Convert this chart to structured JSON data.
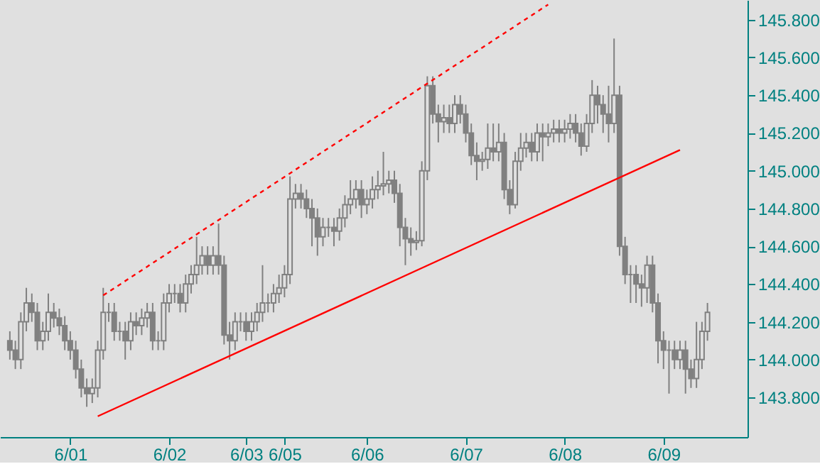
{
  "chart_data": {
    "type": "candlestick",
    "categories": [
      null,
      null,
      null,
      null,
      null,
      null,
      null,
      null,
      null,
      null,
      null,
      "6/01",
      null,
      null,
      null,
      null,
      null,
      null,
      null,
      null,
      null,
      null,
      null,
      null,
      null,
      null,
      null,
      null,
      null,
      "6/02",
      null,
      null,
      null,
      null,
      null,
      null,
      null,
      null,
      null,
      null,
      null,
      null,
      null,
      "6/03",
      null,
      null,
      null,
      null,
      null,
      null,
      "6/05",
      null,
      null,
      null,
      null,
      null,
      null,
      null,
      null,
      null,
      null,
      null,
      null,
      null,
      null,
      "6/06",
      null,
      null,
      null,
      null,
      null,
      null,
      null,
      null,
      null,
      null,
      null,
      null,
      null,
      null,
      null,
      null,
      null,
      "6/07",
      null,
      null,
      null,
      null,
      null,
      null,
      null,
      null,
      null,
      null,
      null,
      null,
      null,
      null,
      null,
      null,
      null,
      "6/08",
      null,
      null,
      null,
      null,
      null,
      null,
      null,
      null,
      null,
      null,
      null,
      null,
      null,
      null,
      null,
      null,
      null,
      "6/09",
      null,
      null,
      null,
      null,
      null,
      null,
      null,
      null
    ],
    "ohlc": [
      [
        144.1,
        144.15,
        144.0,
        144.05
      ],
      [
        144.05,
        144.1,
        143.95,
        144.0
      ],
      [
        144.0,
        144.25,
        143.95,
        144.2
      ],
      [
        144.2,
        144.38,
        144.15,
        144.3
      ],
      [
        144.3,
        144.35,
        144.2,
        144.25
      ],
      [
        144.25,
        144.3,
        144.05,
        144.1
      ],
      [
        144.1,
        144.2,
        144.05,
        144.15
      ],
      [
        144.15,
        144.35,
        144.1,
        144.25
      ],
      [
        144.25,
        144.3,
        144.17,
        144.22
      ],
      [
        144.22,
        144.27,
        144.13,
        144.18
      ],
      [
        144.18,
        144.23,
        144.05,
        144.1
      ],
      [
        144.1,
        144.15,
        144.0,
        144.05
      ],
      [
        144.05,
        144.1,
        143.9,
        143.95
      ],
      [
        143.95,
        144.0,
        143.8,
        143.85
      ],
      [
        143.85,
        143.9,
        143.75,
        143.82
      ],
      [
        143.82,
        143.9,
        143.77,
        143.85
      ],
      [
        143.85,
        144.1,
        143.8,
        144.05
      ],
      [
        144.05,
        144.38,
        144.0,
        144.25
      ],
      [
        144.25,
        144.3,
        144.2,
        144.25
      ],
      [
        144.25,
        144.3,
        144.1,
        144.15
      ],
      [
        144.15,
        144.2,
        144.1,
        144.15
      ],
      [
        144.15,
        144.2,
        144.0,
        144.1
      ],
      [
        144.1,
        144.25,
        144.05,
        144.2
      ],
      [
        144.2,
        144.25,
        144.13,
        144.18
      ],
      [
        144.18,
        144.27,
        144.13,
        144.22
      ],
      [
        144.22,
        144.3,
        144.17,
        144.25
      ],
      [
        144.25,
        144.3,
        144.05,
        144.1
      ],
      [
        144.1,
        144.15,
        144.05,
        144.1
      ],
      [
        144.1,
        144.35,
        144.05,
        144.3
      ],
      [
        144.3,
        144.4,
        144.25,
        144.35
      ],
      [
        144.35,
        144.4,
        144.3,
        144.35
      ],
      [
        144.35,
        144.4,
        144.25,
        144.3
      ],
      [
        144.3,
        144.45,
        144.25,
        144.4
      ],
      [
        144.4,
        144.5,
        144.35,
        144.45
      ],
      [
        144.45,
        144.65,
        144.4,
        144.5
      ],
      [
        144.5,
        144.6,
        144.45,
        144.55
      ],
      [
        144.55,
        144.6,
        144.45,
        144.5
      ],
      [
        144.5,
        144.6,
        144.45,
        144.55
      ],
      [
        144.55,
        144.72,
        144.45,
        144.5
      ],
      [
        144.5,
        144.55,
        144.08,
        144.13
      ],
      [
        144.13,
        144.2,
        144.0,
        144.1
      ],
      [
        144.1,
        144.25,
        144.05,
        144.2
      ],
      [
        144.2,
        144.25,
        144.15,
        144.2
      ],
      [
        144.2,
        144.25,
        144.1,
        144.15
      ],
      [
        144.15,
        144.25,
        144.1,
        144.2
      ],
      [
        144.2,
        144.3,
        144.15,
        144.25
      ],
      [
        144.25,
        144.5,
        144.2,
        144.3
      ],
      [
        144.3,
        144.35,
        144.25,
        144.3
      ],
      [
        144.3,
        144.4,
        144.25,
        144.35
      ],
      [
        144.35,
        144.45,
        144.3,
        144.38
      ],
      [
        144.38,
        144.5,
        144.33,
        144.45
      ],
      [
        144.45,
        144.97,
        144.4,
        144.85
      ],
      [
        144.85,
        144.93,
        144.8,
        144.88
      ],
      [
        144.88,
        144.93,
        144.8,
        144.85
      ],
      [
        144.85,
        144.9,
        144.75,
        144.8
      ],
      [
        144.8,
        144.85,
        144.6,
        144.75
      ],
      [
        144.75,
        144.8,
        144.55,
        144.65
      ],
      [
        144.65,
        144.75,
        144.6,
        144.7
      ],
      [
        144.7,
        144.75,
        144.65,
        144.7
      ],
      [
        144.7,
        144.75,
        144.6,
        144.68
      ],
      [
        144.68,
        144.8,
        144.63,
        144.75
      ],
      [
        144.75,
        144.87,
        144.7,
        144.82
      ],
      [
        144.82,
        144.95,
        144.77,
        144.85
      ],
      [
        144.85,
        144.95,
        144.8,
        144.9
      ],
      [
        144.9,
        144.95,
        144.75,
        144.82
      ],
      [
        144.82,
        144.9,
        144.77,
        144.85
      ],
      [
        144.85,
        144.97,
        144.8,
        144.9
      ],
      [
        144.9,
        145.0,
        144.85,
        144.92
      ],
      [
        144.92,
        145.1,
        144.87,
        144.93
      ],
      [
        144.93,
        145.0,
        144.88,
        144.95
      ],
      [
        144.95,
        145.0,
        144.83,
        144.88
      ],
      [
        144.88,
        144.93,
        144.6,
        144.7
      ],
      [
        144.7,
        144.75,
        144.5,
        144.64
      ],
      [
        144.64,
        144.7,
        144.55,
        144.62
      ],
      [
        144.62,
        144.68,
        144.58,
        144.63
      ],
      [
        144.63,
        145.05,
        144.6,
        145.0
      ],
      [
        145.0,
        145.5,
        144.95,
        145.45
      ],
      [
        145.45,
        145.5,
        145.25,
        145.3
      ],
      [
        145.3,
        145.35,
        145.15,
        145.26
      ],
      [
        145.26,
        145.35,
        145.2,
        145.28
      ],
      [
        145.28,
        145.35,
        145.2,
        145.25
      ],
      [
        145.25,
        145.4,
        145.2,
        145.35
      ],
      [
        145.35,
        145.4,
        145.25,
        145.3
      ],
      [
        145.3,
        145.35,
        145.15,
        145.2
      ],
      [
        145.2,
        145.25,
        145.03,
        145.08
      ],
      [
        145.08,
        145.15,
        144.95,
        145.05
      ],
      [
        145.05,
        145.1,
        145.0,
        145.06
      ],
      [
        145.06,
        145.25,
        145.01,
        145.12
      ],
      [
        145.12,
        145.25,
        145.05,
        145.1
      ],
      [
        145.1,
        145.25,
        145.05,
        145.15
      ],
      [
        145.15,
        145.2,
        144.85,
        144.9
      ],
      [
        144.9,
        144.95,
        144.77,
        144.82
      ],
      [
        144.82,
        145.1,
        144.8,
        145.05
      ],
      [
        145.05,
        145.2,
        145.0,
        145.12
      ],
      [
        145.12,
        145.2,
        145.07,
        145.15
      ],
      [
        145.15,
        145.2,
        145.05,
        145.1
      ],
      [
        145.1,
        145.25,
        145.05,
        145.2
      ],
      [
        145.2,
        145.25,
        145.05,
        145.18
      ],
      [
        145.18,
        145.25,
        145.13,
        145.2
      ],
      [
        145.2,
        145.27,
        145.15,
        145.22
      ],
      [
        145.22,
        145.27,
        145.15,
        145.2
      ],
      [
        145.2,
        145.27,
        145.15,
        145.22
      ],
      [
        145.22,
        145.3,
        145.17,
        145.25
      ],
      [
        145.25,
        145.3,
        145.15,
        145.2
      ],
      [
        145.2,
        145.25,
        145.08,
        145.13
      ],
      [
        145.13,
        145.3,
        145.1,
        145.25
      ],
      [
        145.25,
        145.48,
        145.2,
        145.4
      ],
      [
        145.4,
        145.45,
        145.25,
        145.35
      ],
      [
        145.35,
        145.4,
        145.2,
        145.3
      ],
      [
        145.3,
        145.45,
        145.15,
        145.25
      ],
      [
        145.25,
        145.7,
        145.2,
        145.4
      ],
      [
        145.4,
        145.45,
        144.55,
        144.6
      ],
      [
        144.6,
        144.65,
        144.4,
        144.45
      ],
      [
        144.45,
        144.5,
        144.3,
        144.45
      ],
      [
        144.45,
        144.5,
        144.3,
        144.4
      ],
      [
        144.4,
        144.45,
        144.28,
        144.38
      ],
      [
        144.38,
        144.55,
        144.3,
        144.5
      ],
      [
        144.5,
        144.55,
        144.25,
        144.3
      ],
      [
        144.3,
        144.35,
        143.98,
        144.1
      ],
      [
        144.1,
        144.15,
        143.95,
        144.05
      ],
      [
        144.05,
        144.1,
        143.82,
        144.05
      ],
      [
        144.05,
        144.1,
        143.95,
        144.0
      ],
      [
        144.0,
        144.1,
        143.95,
        144.05
      ],
      [
        144.05,
        144.1,
        143.82,
        143.95
      ],
      [
        143.95,
        144.0,
        143.85,
        143.9
      ],
      [
        143.9,
        144.2,
        143.85,
        144.0
      ],
      [
        144.0,
        144.2,
        143.95,
        144.15
      ],
      [
        144.15,
        144.3,
        144.1,
        144.25
      ]
    ],
    "color": "#808080",
    "series": [
      {
        "type": "line",
        "values": [
          null,
          null,
          null,
          null,
          null,
          null,
          null,
          null,
          null,
          null,
          null,
          null,
          null,
          null,
          null,
          null,
          143.7,
          null,
          null,
          null,
          null,
          null,
          null,
          null,
          null,
          null,
          null,
          null,
          null,
          null,
          null,
          null,
          null,
          null,
          null,
          null,
          null,
          null,
          null,
          null,
          null,
          null,
          null,
          null,
          null,
          null,
          null,
          null,
          null,
          null,
          null,
          null,
          null,
          null,
          null,
          null,
          null,
          null,
          null,
          null,
          null,
          null,
          null,
          null,
          null,
          null,
          null,
          null,
          null,
          null,
          null,
          null,
          null,
          null,
          null,
          null,
          null,
          null,
          null,
          null,
          null,
          null,
          null,
          null,
          null,
          null,
          null,
          null,
          null,
          null,
          null,
          null,
          null,
          null,
          null,
          null,
          null,
          null,
          null,
          null,
          null,
          null,
          null,
          null,
          null,
          null,
          null,
          null,
          null,
          null,
          null,
          null,
          null,
          null,
          null,
          null,
          null,
          null,
          null,
          null,
          null,
          null,
          145.11,
          null,
          null,
          null,
          null,
          null
        ],
        "color": "#ff0000",
        "line_style": "solid"
      },
      {
        "type": "line",
        "values": [
          null,
          null,
          null,
          null,
          null,
          null,
          null,
          null,
          null,
          null,
          null,
          null,
          null,
          null,
          null,
          null,
          null,
          144.34,
          null,
          null,
          null,
          null,
          null,
          null,
          null,
          null,
          null,
          null,
          null,
          null,
          null,
          null,
          null,
          null,
          null,
          null,
          null,
          null,
          null,
          null,
          null,
          null,
          null,
          null,
          null,
          null,
          null,
          null,
          null,
          null,
          null,
          null,
          null,
          null,
          null,
          null,
          null,
          null,
          null,
          null,
          null,
          null,
          null,
          null,
          null,
          null,
          null,
          null,
          null,
          null,
          null,
          null,
          null,
          null,
          null,
          null,
          null,
          null,
          null,
          null,
          null,
          null,
          null,
          null,
          null,
          null,
          null,
          null,
          null,
          null,
          null,
          null,
          null,
          null,
          null,
          null,
          null,
          null,
          145.88,
          null,
          null,
          null,
          null,
          null,
          null,
          null,
          null,
          null,
          null,
          null,
          null,
          null,
          null,
          null,
          null,
          null,
          null,
          null,
          null,
          null,
          null,
          null,
          null,
          null,
          null,
          null,
          null,
          null
        ],
        "color": "#ff0000",
        "line_style": "dashed"
      }
    ],
    "ylim": [
      143.59,
      145.904
    ],
    "yticks": [
      {
        "value": 143.8,
        "label": "143.800"
      },
      {
        "value": 144.0,
        "label": "144.000"
      },
      {
        "value": 144.2,
        "label": "144.200"
      },
      {
        "value": 144.4,
        "label": "144.400"
      },
      {
        "value": 144.6,
        "label": "144.600"
      },
      {
        "value": 144.8,
        "label": "144.800"
      },
      {
        "value": 145.0,
        "label": "145.000"
      },
      {
        "value": 145.2,
        "label": "145.200"
      },
      {
        "value": 145.4,
        "label": "145.400"
      },
      {
        "value": 145.6,
        "label": "145.600"
      },
      {
        "value": 145.8,
        "label": "145.800"
      }
    ],
    "marker": "none"
  }
}
